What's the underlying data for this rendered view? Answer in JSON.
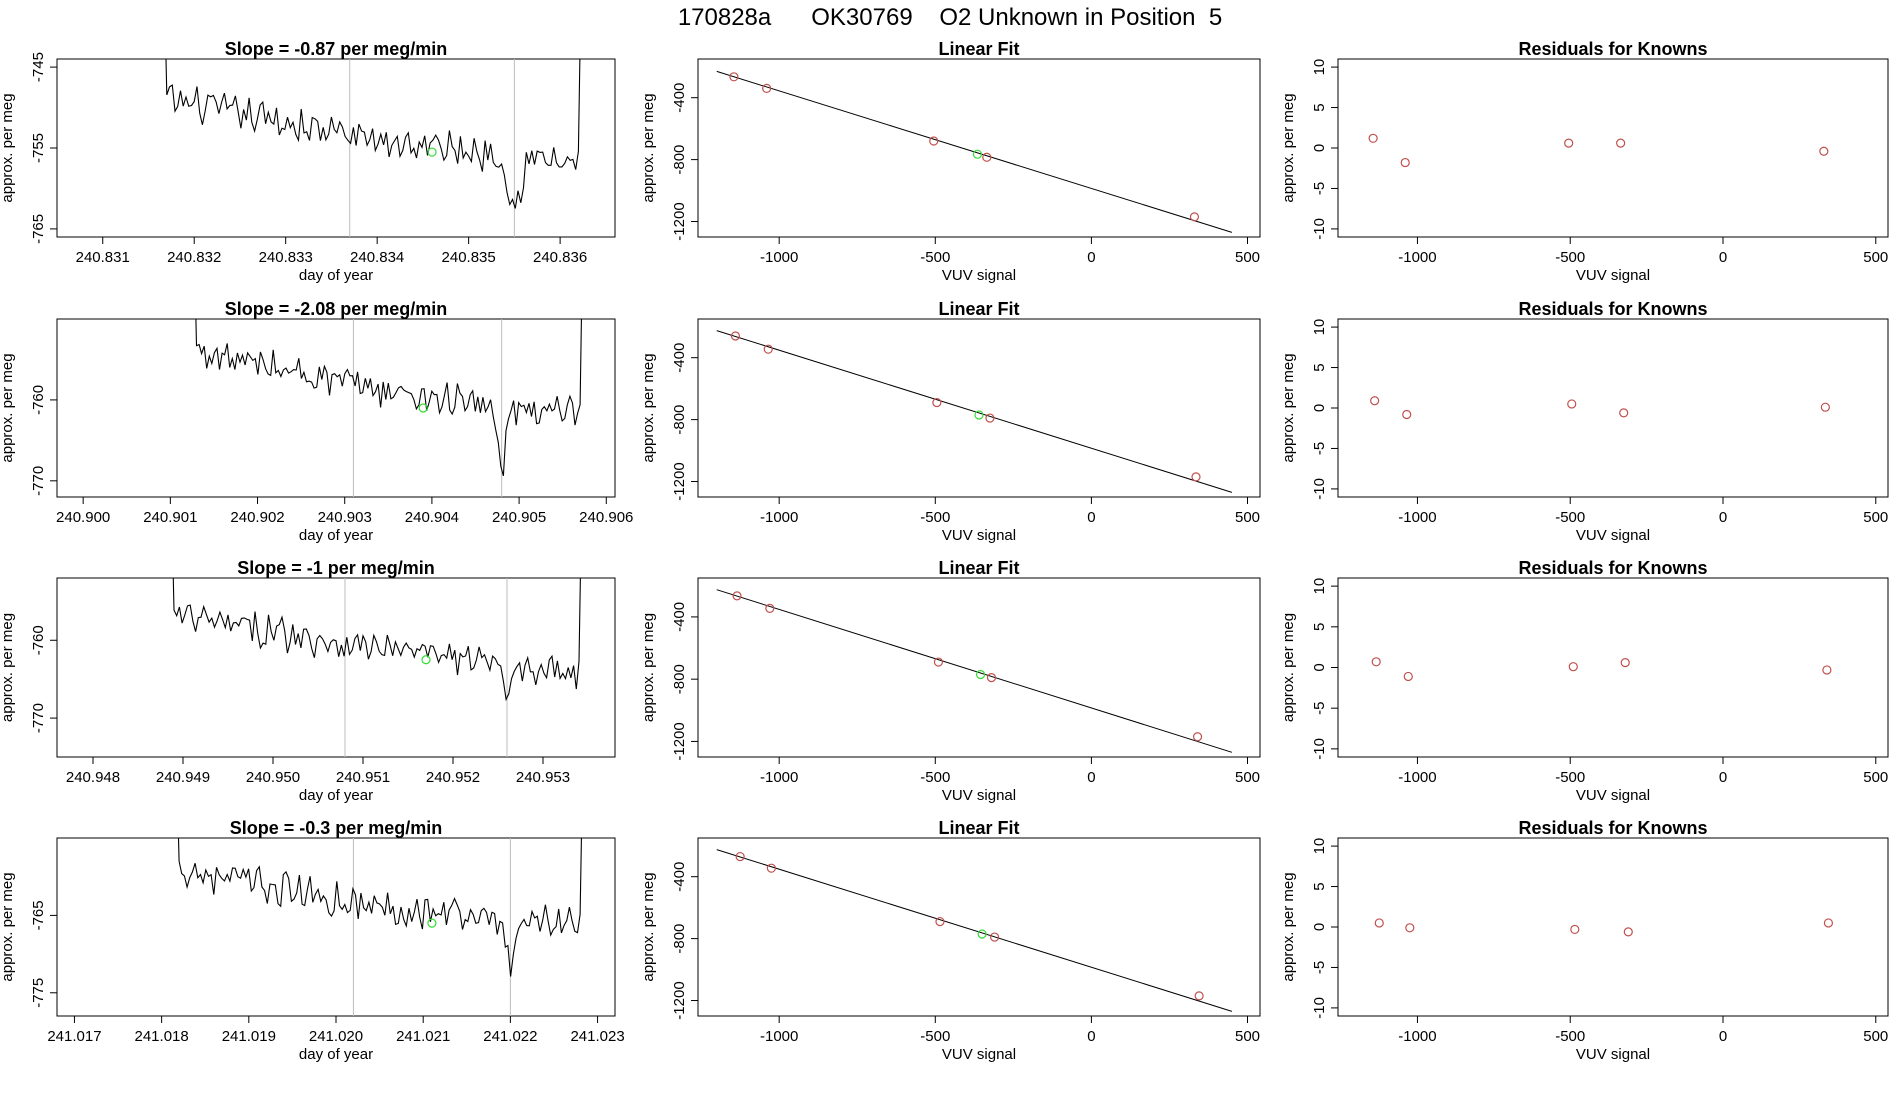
{
  "header": {
    "title": "170828a      OK30769    O2 Unknown in Position  5"
  },
  "chart_data": [
    {
      "type": "line",
      "panel": "time-series",
      "row": 1,
      "title": "Slope =  -0.87  per meg/min",
      "xlabel": "day of year",
      "ylabel": "approx. per meg",
      "xlim": [
        240.8305,
        240.8366
      ],
      "ylim": [
        -766,
        -744
      ],
      "xticks": [
        240.831,
        240.832,
        240.833,
        240.834,
        240.835,
        240.836
      ],
      "xtick_labels": [
        "240.831",
        "240.832",
        "240.833",
        "240.834",
        "240.835",
        "240.836"
      ],
      "yticks": [
        -745,
        -755,
        -765
      ],
      "ytick_labels": [
        "-745",
        "-755",
        "-765"
      ],
      "trace_start": 240.8317,
      "trace_end": 240.8362,
      "base_start": -749,
      "base_mid": -754,
      "base_end": -757,
      "vlines": [
        240.8337,
        240.8355
      ],
      "marker": {
        "x": 240.8346,
        "y": -755.5
      },
      "spike": {
        "x": 240.8355,
        "y": -763
      }
    },
    {
      "type": "line",
      "panel": "time-series",
      "row": 2,
      "title": "Slope =  -2.08  per meg/min",
      "xlabel": "day of year",
      "ylabel": "approx. per meg",
      "xlim": [
        240.8997,
        240.9061
      ],
      "ylim": [
        -772,
        -750
      ],
      "xticks": [
        240.9,
        240.901,
        240.902,
        240.903,
        240.904,
        240.905,
        240.906
      ],
      "xtick_labels": [
        "240.900",
        "240.901",
        "240.902",
        "240.903",
        "240.904",
        "240.905",
        "240.906"
      ],
      "yticks": [
        -760,
        -770
      ],
      "ytick_labels": [
        "-760",
        "-770"
      ],
      "trace_start": 240.9013,
      "trace_end": 240.9057,
      "base_start": -754,
      "base_mid": -759,
      "base_end": -762,
      "vlines": [
        240.9031,
        240.9048
      ],
      "marker": {
        "x": 240.9039,
        "y": -761
      },
      "spike": {
        "x": 240.9048,
        "y": -768.5
      }
    },
    {
      "type": "line",
      "panel": "time-series",
      "row": 3,
      "title": "Slope =  -1  per meg/min",
      "xlabel": "day of year",
      "ylabel": "approx. per meg",
      "xlim": [
        240.9476,
        240.9538
      ],
      "ylim": [
        -775,
        -752
      ],
      "xticks": [
        240.948,
        240.949,
        240.95,
        240.951,
        240.952,
        240.953
      ],
      "xtick_labels": [
        "240.948",
        "240.949",
        "240.950",
        "240.951",
        "240.952",
        "240.953"
      ],
      "yticks": [
        -760,
        -770
      ],
      "ytick_labels": [
        "-760",
        "-770"
      ],
      "trace_start": 240.9489,
      "trace_end": 240.9534,
      "base_start": -757,
      "base_mid": -761,
      "base_end": -764,
      "vlines": [
        240.9508,
        240.9526
      ],
      "marker": {
        "x": 240.9517,
        "y": -762.5
      },
      "spike": {
        "x": 240.9526,
        "y": -767.5
      }
    },
    {
      "type": "line",
      "panel": "time-series",
      "row": 4,
      "title": "Slope =  -0.3  per meg/min",
      "xlabel": "day of year",
      "ylabel": "approx. per meg",
      "xlim": [
        241.0168,
        241.0232
      ],
      "ylim": [
        -778,
        -755
      ],
      "xticks": [
        241.017,
        241.018,
        241.019,
        241.02,
        241.021,
        241.022,
        241.023
      ],
      "xtick_labels": [
        "241.017",
        "241.018",
        "241.019",
        "241.020",
        "241.021",
        "241.022",
        "241.023"
      ],
      "yticks": [
        -765,
        -775
      ],
      "ytick_labels": [
        "-765",
        "-775"
      ],
      "trace_start": 241.0182,
      "trace_end": 241.0228,
      "base_start": -759,
      "base_mid": -764,
      "base_end": -766,
      "vlines": [
        241.0202,
        241.022
      ],
      "marker": {
        "x": 241.0211,
        "y": -766
      },
      "spike": {
        "x": 241.022,
        "y": -772
      }
    },
    {
      "type": "scatter",
      "panel": "linear-fit",
      "row": 1,
      "title": "Linear Fit",
      "xlabel": "VUV signal",
      "ylabel": "approx. per meg",
      "xlim": [
        -1260,
        540
      ],
      "ylim": [
        -1300,
        -150
      ],
      "xticks": [
        -1000,
        -500,
        0,
        500
      ],
      "xtick_labels": [
        "-1000",
        "-500",
        "0",
        "500"
      ],
      "yticks": [
        -400,
        -800,
        -1200
      ],
      "ytick_labels": [
        "-400",
        "-800",
        "-1200"
      ],
      "points": [
        [
          -1145,
          -265
        ],
        [
          -1040,
          -340
        ],
        [
          -505,
          -680
        ],
        [
          -335,
          -785
        ],
        [
          330,
          -1170
        ]
      ],
      "unknown": [
        -365,
        -765
      ],
      "fit_line": [
        [
          -1200,
          -230
        ],
        [
          450,
          -1270
        ]
      ]
    },
    {
      "type": "scatter",
      "panel": "linear-fit",
      "row": 2,
      "title": "Linear Fit",
      "xlabel": "VUV signal",
      "ylabel": "approx. per meg",
      "xlim": [
        -1260,
        540
      ],
      "ylim": [
        -1300,
        -150
      ],
      "xticks": [
        -1000,
        -500,
        0,
        500
      ],
      "xtick_labels": [
        "-1000",
        "-500",
        "0",
        "500"
      ],
      "yticks": [
        -400,
        -800,
        -1200
      ],
      "ytick_labels": [
        "-400",
        "-800",
        "-1200"
      ],
      "points": [
        [
          -1140,
          -260
        ],
        [
          -1035,
          -345
        ],
        [
          -495,
          -690
        ],
        [
          -325,
          -790
        ],
        [
          335,
          -1170
        ]
      ],
      "unknown": [
        -360,
        -770
      ],
      "fit_line": [
        [
          -1200,
          -225
        ],
        [
          450,
          -1270
        ]
      ]
    },
    {
      "type": "scatter",
      "panel": "linear-fit",
      "row": 3,
      "title": "Linear Fit",
      "xlabel": "VUV signal",
      "ylabel": "approx. per meg",
      "xlim": [
        -1260,
        540
      ],
      "ylim": [
        -1300,
        -150
      ],
      "xticks": [
        -1000,
        -500,
        0,
        500
      ],
      "xtick_labels": [
        "-1000",
        "-500",
        "0",
        "500"
      ],
      "yticks": [
        -400,
        -800,
        -1200
      ],
      "ytick_labels": [
        "-400",
        "-800",
        "-1200"
      ],
      "points": [
        [
          -1135,
          -265
        ],
        [
          -1030,
          -345
        ],
        [
          -490,
          -690
        ],
        [
          -320,
          -790
        ],
        [
          340,
          -1170
        ]
      ],
      "unknown": [
        -355,
        -770
      ],
      "fit_line": [
        [
          -1200,
          -225
        ],
        [
          450,
          -1270
        ]
      ]
    },
    {
      "type": "scatter",
      "panel": "linear-fit",
      "row": 4,
      "title": "Linear Fit",
      "xlabel": "VUV signal",
      "ylabel": "approx. per meg",
      "xlim": [
        -1260,
        540
      ],
      "ylim": [
        -1300,
        -150
      ],
      "xticks": [
        -1000,
        -500,
        0,
        500
      ],
      "xtick_labels": [
        "-1000",
        "-500",
        "0",
        "500"
      ],
      "yticks": [
        -400,
        -800,
        -1200
      ],
      "ytick_labels": [
        "-400",
        "-800",
        "-1200"
      ],
      "points": [
        [
          -1125,
          -270
        ],
        [
          -1025,
          -345
        ],
        [
          -485,
          -690
        ],
        [
          -310,
          -790
        ],
        [
          345,
          -1170
        ]
      ],
      "unknown": [
        -350,
        -770
      ],
      "fit_line": [
        [
          -1200,
          -225
        ],
        [
          450,
          -1270
        ]
      ]
    },
    {
      "type": "scatter",
      "panel": "residuals",
      "row": 1,
      "title": "Residuals for Knowns",
      "xlabel": "VUV signal",
      "ylabel": "approx. per meg",
      "xlim": [
        -1260,
        540
      ],
      "ylim": [
        -11,
        11
      ],
      "xticks": [
        -1000,
        -500,
        0,
        500
      ],
      "xtick_labels": [
        "-1000",
        "-500",
        "0",
        "500"
      ],
      "yticks": [
        10,
        5,
        0,
        -5,
        -10
      ],
      "ytick_labels": [
        "10",
        "5",
        "0",
        "-5",
        "-10"
      ],
      "points": [
        [
          -1145,
          1.2
        ],
        [
          -1040,
          -1.8
        ],
        [
          -505,
          0.6
        ],
        [
          -335,
          0.6
        ],
        [
          330,
          -0.4
        ]
      ]
    },
    {
      "type": "scatter",
      "panel": "residuals",
      "row": 2,
      "title": "Residuals for Knowns",
      "xlabel": "VUV signal",
      "ylabel": "approx. per meg",
      "xlim": [
        -1260,
        540
      ],
      "ylim": [
        -11,
        11
      ],
      "xticks": [
        -1000,
        -500,
        0,
        500
      ],
      "xtick_labels": [
        "-1000",
        "-500",
        "0",
        "500"
      ],
      "yticks": [
        10,
        5,
        0,
        -5,
        -10
      ],
      "ytick_labels": [
        "10",
        "5",
        "0",
        "-5",
        "-10"
      ],
      "points": [
        [
          -1140,
          0.9
        ],
        [
          -1035,
          -0.8
        ],
        [
          -495,
          0.5
        ],
        [
          -325,
          -0.6
        ],
        [
          335,
          0.1
        ]
      ]
    },
    {
      "type": "scatter",
      "panel": "residuals",
      "row": 3,
      "title": "Residuals for Knowns",
      "xlabel": "VUV signal",
      "ylabel": "approx. per meg",
      "xlim": [
        -1260,
        540
      ],
      "ylim": [
        -11,
        11
      ],
      "xticks": [
        -1000,
        -500,
        0,
        500
      ],
      "xtick_labels": [
        "-1000",
        "-500",
        "0",
        "500"
      ],
      "yticks": [
        10,
        5,
        0,
        -5,
        -10
      ],
      "ytick_labels": [
        "10",
        "5",
        "0",
        "-5",
        "-10"
      ],
      "points": [
        [
          -1135,
          0.7
        ],
        [
          -1030,
          -1.1
        ],
        [
          -490,
          0.1
        ],
        [
          -320,
          0.6
        ],
        [
          340,
          -0.3
        ]
      ]
    },
    {
      "type": "scatter",
      "panel": "residuals",
      "row": 4,
      "title": "Residuals for Knowns",
      "xlabel": "VUV signal",
      "ylabel": "approx. per meg",
      "xlim": [
        -1260,
        540
      ],
      "ylim": [
        -11,
        11
      ],
      "xticks": [
        -1000,
        -500,
        0,
        500
      ],
      "xtick_labels": [
        "-1000",
        "-500",
        "0",
        "500"
      ],
      "yticks": [
        10,
        5,
        0,
        -5,
        -10
      ],
      "ytick_labels": [
        "10",
        "5",
        "0",
        "-5",
        "-10"
      ],
      "points": [
        [
          -1125,
          0.5
        ],
        [
          -1025,
          -0.1
        ],
        [
          -485,
          -0.3
        ],
        [
          -310,
          -0.6
        ],
        [
          345,
          0.5
        ]
      ]
    }
  ],
  "colors": {
    "line": "#000000",
    "known_points": "#c0504d",
    "unknown_point": "#33dd33",
    "vlines": "#bdbdbd"
  }
}
